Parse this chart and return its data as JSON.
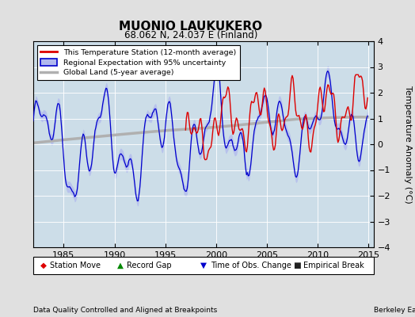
{
  "title": "MUONIO LAUKUKERO",
  "subtitle": "68.062 N, 24.037 E (Finland)",
  "ylabel": "Temperature Anomaly (°C)",
  "xlabel_left": "Data Quality Controlled and Aligned at Breakpoints",
  "xlabel_right": "Berkeley Earth",
  "ylim": [
    -4,
    4
  ],
  "xlim": [
    1982.0,
    2015.5
  ],
  "xticks": [
    1985,
    1990,
    1995,
    2000,
    2005,
    2010,
    2015
  ],
  "yticks": [
    -4,
    -3,
    -2,
    -1,
    0,
    1,
    2,
    3,
    4
  ],
  "legend_line1": "This Temperature Station (12-month average)",
  "legend_line2": "Regional Expectation with 95% uncertainty",
  "legend_line3": "Global Land (5-year average)",
  "legend_bottom": [
    "Station Move",
    "Record Gap",
    "Time of Obs. Change",
    "Empirical Break"
  ],
  "bg_color": "#e0e0e0",
  "plot_bg_color": "#ccdde8",
  "red_color": "#dd0000",
  "blue_color": "#0000cc",
  "blue_fill_color": "#b0b8ee",
  "gray_color": "#b0b0b0",
  "grid_color": "#ffffff",
  "seed": 42
}
